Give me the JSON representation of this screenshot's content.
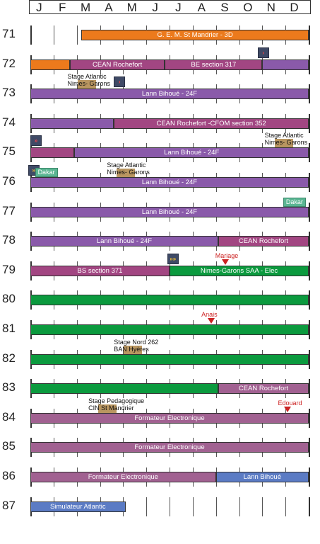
{
  "months": [
    "J",
    "F",
    "M",
    "A",
    "M",
    "J",
    "J",
    "A",
    "S",
    "O",
    "N",
    "D"
  ],
  "colors": {
    "orange": "#ec7a1c",
    "purple": "#8a5aaa",
    "magenta": "#a24682",
    "mauve": "#a16191",
    "green": "#0b9a3e",
    "blue": "#5b7bc4",
    "tan": "#b99660",
    "teal": "#5ab592",
    "badge": "#3f4a66",
    "event": "#cc2222"
  },
  "rows": [
    {
      "year": "71",
      "bars": [
        {
          "start": 2.2,
          "end": 12,
          "color": "orange",
          "label": "G. E. M. St Mandrier - 3D"
        }
      ],
      "notes": [],
      "badges": [],
      "tags": [],
      "events": []
    },
    {
      "year": "72",
      "bars": [
        {
          "start": 0,
          "end": 1.7,
          "color": "orange",
          "label": ""
        },
        {
          "start": 1.7,
          "end": 5.8,
          "color": "magenta",
          "label": "CEAN Rochefort"
        },
        {
          "start": 5.8,
          "end": 10.0,
          "color": "magenta",
          "label": "BE section 317"
        },
        {
          "start": 10.0,
          "end": 12,
          "color": "purple",
          "label": ""
        }
      ],
      "notes": [],
      "badges": [
        {
          "pos": 9.8,
          "glyph": "›",
          "color": "red"
        }
      ],
      "tags": [],
      "events": []
    },
    {
      "year": "73",
      "bars": [
        {
          "start": 0,
          "end": 12,
          "color": "purple",
          "label": "Lann Bihoué - 24F"
        }
      ],
      "notes": [
        {
          "start": 1.6,
          "lines": [
            "Stage Atlantic",
            "Nimes- Garons"
          ]
        }
      ],
      "badges": [
        {
          "pos": 3.6,
          "glyph": "›",
          "color": "red"
        }
      ],
      "tags": [],
      "events": []
    },
    {
      "year": "74",
      "bars": [
        {
          "start": 0,
          "end": 3.6,
          "color": "purple",
          "label": ""
        },
        {
          "start": 3.6,
          "end": 12,
          "color": "magenta",
          "label": "CEAN Rochefort -CFOM section 352"
        }
      ],
      "notes": [],
      "badges": [],
      "tags": [],
      "events": []
    },
    {
      "year": "75",
      "bars": [
        {
          "start": 0,
          "end": 1.9,
          "color": "magenta",
          "label": ""
        },
        {
          "start": 1.9,
          "end": 12,
          "color": "purple",
          "label": "Lann Bihoué - 24F"
        }
      ],
      "notes": [
        {
          "start": 10.1,
          "lines": [
            "Stage Atlantic",
            "Nimes- Garons"
          ]
        }
      ],
      "badges": [
        {
          "pos": 0.0,
          "glyph": "»",
          "color": "red"
        }
      ],
      "tags": [],
      "events": []
    },
    {
      "year": "76",
      "bars": [
        {
          "start": 0,
          "end": 12,
          "color": "purple",
          "label": "Lann Bihoué - 24F"
        }
      ],
      "notes": [
        {
          "start": 3.3,
          "lines": [
            "Stage Atlantic",
            "Nimes- Garons"
          ]
        }
      ],
      "badges": [
        {
          "pos": -0.1,
          "glyph": "»",
          "color": "yellow"
        }
      ],
      "tags": [
        {
          "pos": 0.2,
          "label": "Dakar"
        }
      ],
      "events": []
    },
    {
      "year": "77",
      "bars": [
        {
          "start": 0,
          "end": 12,
          "color": "purple",
          "label": "Lann Bihoué - 24F"
        }
      ],
      "notes": [],
      "badges": [],
      "tags": [
        {
          "pos": 10.9,
          "label": "Dakar"
        }
      ],
      "events": []
    },
    {
      "year": "78",
      "bars": [
        {
          "start": 0,
          "end": 8.1,
          "color": "purple",
          "label": "Lann Bihoué - 24F"
        },
        {
          "start": 8.1,
          "end": 12,
          "color": "magenta",
          "label": "CEAN Rochefort"
        }
      ],
      "notes": [],
      "badges": [],
      "tags": [],
      "events": []
    },
    {
      "year": "79",
      "bars": [
        {
          "start": 0,
          "end": 6.0,
          "color": "magenta",
          "label": "BS section 371"
        },
        {
          "start": 6.0,
          "end": 12,
          "color": "green",
          "label": "Nimes-Garons SAA - Elec"
        }
      ],
      "notes": [],
      "badges": [
        {
          "pos": 5.9,
          "glyph": "»»",
          "color": "yellow"
        }
      ],
      "tags": [],
      "events": [
        {
          "pos": 8.4,
          "label": "Mariage"
        }
      ]
    },
    {
      "year": "80",
      "bars": [
        {
          "start": 0,
          "end": 12,
          "color": "green",
          "label": ""
        }
      ],
      "notes": [],
      "badges": [],
      "tags": [],
      "events": []
    },
    {
      "year": "81",
      "bars": [
        {
          "start": 0,
          "end": 12,
          "color": "green",
          "label": ""
        }
      ],
      "notes": [],
      "badges": [],
      "tags": [],
      "events": [
        {
          "pos": 7.8,
          "label": "Anais"
        }
      ]
    },
    {
      "year": "82",
      "bars": [
        {
          "start": 0,
          "end": 12,
          "color": "green",
          "label": ""
        }
      ],
      "notes": [
        {
          "start": 3.6,
          "lines": [
            "Stage Nord 262",
            "BAN Hyères"
          ]
        }
      ],
      "badges": [],
      "tags": [],
      "events": []
    },
    {
      "year": "83",
      "bars": [
        {
          "start": 0,
          "end": 8.1,
          "color": "green",
          "label": ""
        },
        {
          "start": 8.1,
          "end": 12,
          "color": "mauve",
          "label": "CEAN Rochefort"
        }
      ],
      "notes": [],
      "badges": [],
      "tags": [],
      "events": []
    },
    {
      "year": "84",
      "bars": [
        {
          "start": 0,
          "end": 12,
          "color": "mauve",
          "label": "Formateur Electronique"
        }
      ],
      "notes": [
        {
          "start": 2.5,
          "lines": [
            "Stage Pedagogique",
            "CIN St Mandrier"
          ]
        }
      ],
      "badges": [],
      "tags": [],
      "events": [
        {
          "pos": 11.1,
          "label": "Edouard"
        }
      ]
    },
    {
      "year": "85",
      "bars": [
        {
          "start": 0,
          "end": 12,
          "color": "mauve",
          "label": "Formateur Electronique"
        }
      ],
      "notes": [],
      "badges": [],
      "tags": [],
      "events": []
    },
    {
      "year": "86",
      "bars": [
        {
          "start": 0,
          "end": 8.0,
          "color": "mauve",
          "label": "Formateur Electronique"
        },
        {
          "start": 8.0,
          "end": 12,
          "color": "blue",
          "label": "Lann Bihoué"
        }
      ],
      "notes": [],
      "badges": [],
      "tags": [],
      "events": []
    },
    {
      "year": "87",
      "bars": [
        {
          "start": 0,
          "end": 4.1,
          "color": "blue",
          "label": "Simulateur Atlantic"
        }
      ],
      "notes": [],
      "badges": [],
      "tags": [],
      "events": []
    }
  ]
}
